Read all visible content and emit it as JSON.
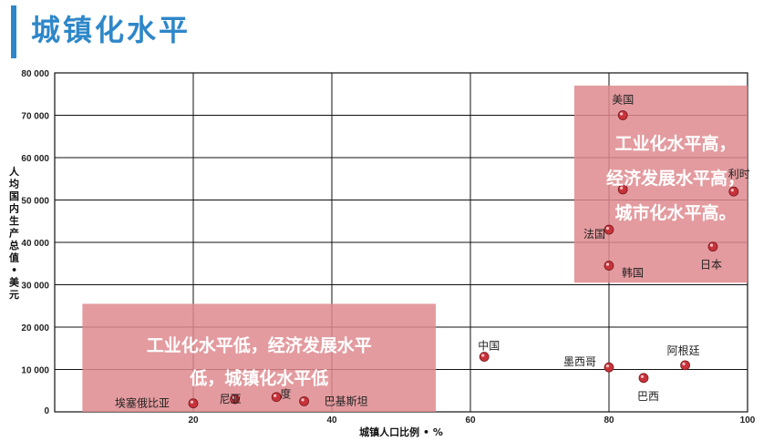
{
  "page": {
    "title": "城镇化水平"
  },
  "chart_data": {
    "type": "scatter",
    "title": "",
    "xlabel": "城镇人口比例 • %",
    "ylabel": "人均国内生产总值 • 美元",
    "xlim": [
      0,
      100
    ],
    "ylim": [
      0,
      80000
    ],
    "x_ticks": [
      20,
      40,
      60,
      80,
      100
    ],
    "x_tick_labels": [
      "20",
      "40",
      "60",
      "80",
      "100"
    ],
    "y_ticks": [
      10000,
      20000,
      30000,
      40000,
      50000,
      60000,
      70000,
      80000
    ],
    "y_tick_labels": [
      "10 000",
      "20 000",
      "30 000",
      "40 000",
      "50 000",
      "60 000",
      "70 000",
      "80 000"
    ],
    "origin_label": "0",
    "grid": true,
    "points": [
      {
        "label": "美国",
        "x": 82,
        "y": 70000
      },
      {
        "label": "利时",
        "x": 98,
        "y": 52000
      },
      {
        "label": "",
        "x": 82,
        "y": 52500
      },
      {
        "label": "法国",
        "x": 80,
        "y": 43000
      },
      {
        "label": "日本",
        "x": 95,
        "y": 39000
      },
      {
        "label": "韩国",
        "x": 80,
        "y": 34500
      },
      {
        "label": "中国",
        "x": 62,
        "y": 13000
      },
      {
        "label": "墨西哥",
        "x": 80,
        "y": 10500
      },
      {
        "label": "阿根廷",
        "x": 91,
        "y": 11000
      },
      {
        "label": "巴西",
        "x": 85,
        "y": 8000
      },
      {
        "label": "埃塞俄比亚",
        "x": 20,
        "y": 2000
      },
      {
        "label": "尼亚",
        "x": 26,
        "y": 3000
      },
      {
        "label": "度",
        "x": 32,
        "y": 3500
      },
      {
        "label": "巴基斯坦",
        "x": 36,
        "y": 2500
      }
    ],
    "annotations": [
      {
        "lines": [
          "工业化水平高，",
          "经济发展水平高，",
          "城市化水平高。"
        ],
        "x_range": [
          75,
          100
        ],
        "y_range": [
          30500,
          77000
        ]
      },
      {
        "lines": [
          "工业化水平低，经济发展水平",
          "低，城镇化水平低"
        ],
        "x_range": [
          4,
          55
        ],
        "y_range": [
          0,
          25500
        ]
      }
    ],
    "colors": {
      "point": "#c8323a",
      "highlight": "#de8a8e",
      "grid": "#111111"
    }
  }
}
